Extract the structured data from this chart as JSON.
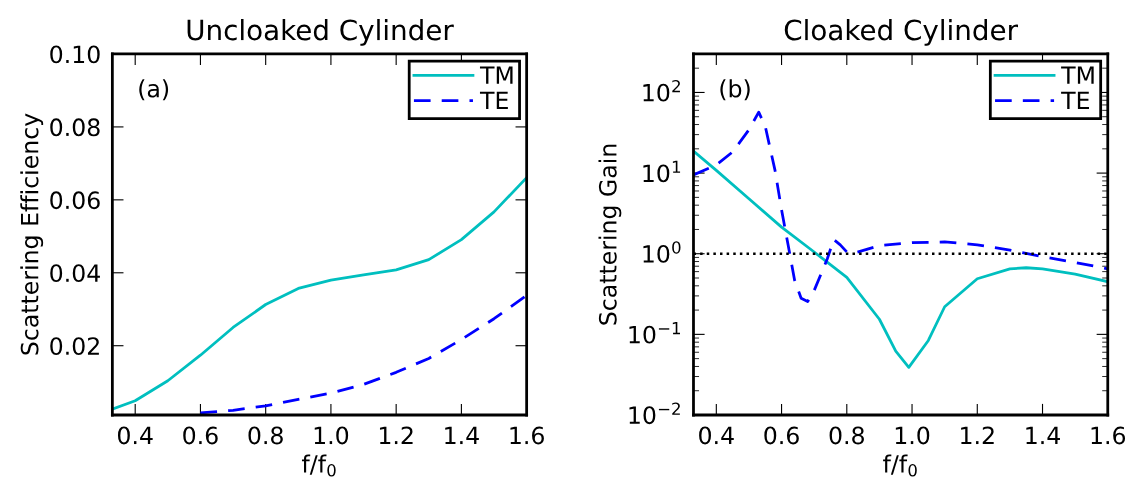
{
  "chart_data": [
    {
      "type": "line",
      "title": "Uncloaked Cylinder",
      "xlabel": "f/f$_{0}$",
      "ylabel": "Scattering Efficiency",
      "annotations": [
        "(a)"
      ],
      "xlim": [
        0.33,
        1.6
      ],
      "ylim": [
        0.001,
        0.1
      ],
      "xticks": [
        {
          "value": 0.4,
          "label": "0.4"
        },
        {
          "value": 0.6,
          "label": "0.6"
        },
        {
          "value": 0.8,
          "label": "0.8"
        },
        {
          "value": 1.0,
          "label": "1.0"
        },
        {
          "value": 1.2,
          "label": "1.2"
        },
        {
          "value": 1.4,
          "label": "1.4"
        },
        {
          "value": 1.6,
          "label": "1.6"
        }
      ],
      "yticks": [
        {
          "value": 0.02,
          "label": "0.02"
        },
        {
          "value": 0.04,
          "label": "0.04"
        },
        {
          "value": 0.06,
          "label": "0.06"
        },
        {
          "value": 0.08,
          "label": "0.08"
        },
        {
          "value": 0.1,
          "label": "0.10"
        }
      ],
      "legend": "top right",
      "grid": false,
      "series": [
        {
          "name": "TM",
          "color": "#00bfbf",
          "line_style": "solid",
          "x": [
            0.33,
            0.4,
            0.5,
            0.6,
            0.7,
            0.8,
            0.9,
            1.0,
            1.1,
            1.2,
            1.3,
            1.4,
            1.5,
            1.6
          ],
          "values": [
            0.0026,
            0.0049,
            0.0104,
            0.0174,
            0.025,
            0.0313,
            0.0357,
            0.038,
            0.0394,
            0.0408,
            0.0436,
            0.0491,
            0.0567,
            0.0661
          ]
        },
        {
          "name": "TE",
          "color": "#0000ff",
          "line_style": "dashed",
          "x": [
            0.6,
            0.7,
            0.8,
            0.9,
            1.0,
            1.1,
            1.2,
            1.3,
            1.4,
            1.5,
            1.6
          ],
          "values": [
            0.0016,
            0.0023,
            0.0035,
            0.0053,
            0.007,
            0.0094,
            0.0127,
            0.0165,
            0.0217,
            0.0274,
            0.0338
          ]
        }
      ]
    },
    {
      "type": "line",
      "title": "Cloaked Cylinder",
      "xlabel": "f/f$_{0}$",
      "ylabel": "Scattering Gain",
      "annotations": [
        "(b)"
      ],
      "log": "y",
      "xlim": [
        0.33,
        1.6
      ],
      "ylim": [
        0.01,
        300
      ],
      "xticks": [
        {
          "value": 0.4,
          "label": "0.4"
        },
        {
          "value": 0.6,
          "label": "0.6"
        },
        {
          "value": 0.8,
          "label": "0.8"
        },
        {
          "value": 1.0,
          "label": "1.0"
        },
        {
          "value": 1.2,
          "label": "1.2"
        },
        {
          "value": 1.4,
          "label": "1.4"
        },
        {
          "value": 1.6,
          "label": "1.6"
        }
      ],
      "yticks": [
        {
          "value": 0.01,
          "label": "10$^{−2}$"
        },
        {
          "value": 0.1,
          "label": "10$^{−1}$"
        },
        {
          "value": 1,
          "label": "10$^{0}$"
        },
        {
          "value": 10,
          "label": "10$^{1}$"
        },
        {
          "value": 100,
          "label": "10$^{2}$"
        }
      ],
      "ref_lines": [
        {
          "axis": "y",
          "value": 1,
          "color": "#000000",
          "line_style": "dotted"
        }
      ],
      "legend": "top right",
      "grid": false,
      "series": [
        {
          "name": "TM",
          "color": "#00bfbf",
          "line_style": "solid",
          "x": [
            0.33,
            0.4,
            0.5,
            0.6,
            0.7,
            0.8,
            0.9,
            0.95,
            0.99,
            1.05,
            1.1,
            1.2,
            1.3,
            1.35,
            1.4,
            1.5,
            1.6
          ],
          "values": [
            18.8,
            10.8,
            4.8,
            2.14,
            1.05,
            0.51,
            0.154,
            0.062,
            0.039,
            0.084,
            0.22,
            0.49,
            0.65,
            0.67,
            0.65,
            0.56,
            0.45
          ]
        },
        {
          "name": "TE",
          "color": "#0000ff",
          "line_style": "dashed",
          "x": [
            0.33,
            0.4,
            0.45,
            0.5,
            0.53,
            0.55,
            0.58,
            0.6,
            0.62,
            0.64,
            0.66,
            0.68,
            0.7,
            0.74,
            0.76,
            0.78,
            0.8,
            0.82,
            0.9,
            1.0,
            1.1,
            1.2,
            1.3,
            1.4,
            1.5,
            1.6
          ],
          "values": [
            9.5,
            12.6,
            18.3,
            34.5,
            57,
            38,
            10.8,
            3.5,
            1.29,
            0.47,
            0.28,
            0.255,
            0.35,
            0.86,
            1.5,
            1.29,
            1.05,
            1.01,
            1.26,
            1.37,
            1.4,
            1.29,
            1.11,
            0.92,
            0.78,
            0.65
          ]
        }
      ]
    }
  ]
}
